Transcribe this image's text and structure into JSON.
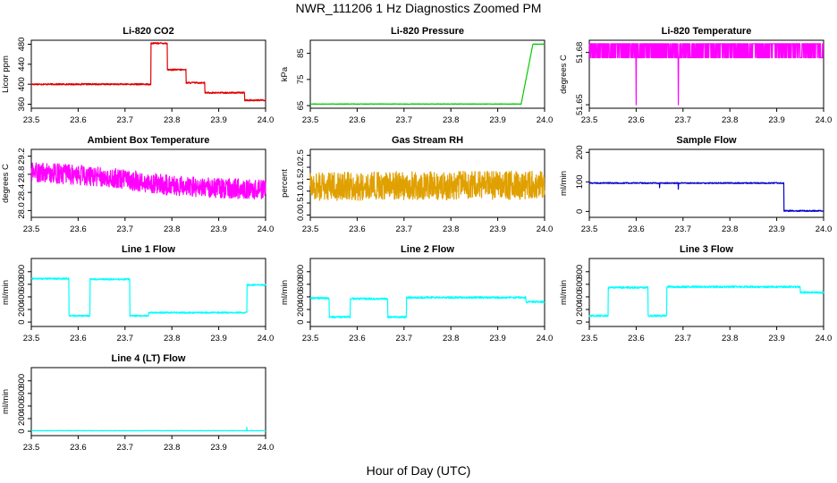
{
  "title": "NWR_111206  1 Hz Diagnostics Zoomed PM",
  "xlabel": "Hour of Day (UTC)",
  "x_ticks": [
    23.5,
    23.6,
    23.7,
    23.8,
    23.9,
    24.0
  ],
  "chart_data": [
    {
      "type": "line",
      "title": "Li-820 CO2",
      "ylabel": "Licor ppm",
      "color": "#e00000",
      "xlim": [
        23.5,
        24.0
      ],
      "ylim": [
        352,
        488
      ],
      "yticks": [
        360,
        400,
        440,
        480
      ],
      "segments": [
        [
          23.5,
          23.755,
          400
        ],
        [
          23.755,
          23.79,
          482
        ],
        [
          23.79,
          23.83,
          429
        ],
        [
          23.83,
          23.87,
          403
        ],
        [
          23.87,
          23.955,
          383
        ],
        [
          23.955,
          24.0,
          368
        ]
      ],
      "noise": 1.5
    },
    {
      "type": "line",
      "title": "Li-820 Pressure",
      "ylabel": "kPa",
      "color": "#00cc00",
      "xlim": [
        23.5,
        24.0
      ],
      "ylim": [
        64,
        90
      ],
      "yticks": [
        65,
        75,
        85
      ],
      "segments": [
        [
          23.5,
          23.95,
          65.6
        ],
        [
          23.95,
          23.975,
          65.6,
          88.5
        ],
        [
          23.975,
          24.0,
          88.5
        ]
      ],
      "noise": 0.1
    },
    {
      "type": "line",
      "title": "Li-820 Temperature",
      "ylabel": "degrees C",
      "color": "#ff00ff",
      "xlim": [
        23.5,
        24.0
      ],
      "ylim": [
        51.648,
        51.687
      ],
      "yticks": [
        51.65,
        51.68
      ],
      "levels": [
        51.685,
        51.677
      ],
      "dips": [
        [
          23.6,
          51.65
        ],
        [
          23.69,
          51.65
        ]
      ]
    },
    {
      "type": "line",
      "title": "Ambient Box Temperature",
      "ylabel": "degrees C",
      "color": "#ff00ff",
      "xlim": [
        23.5,
        24.0
      ],
      "ylim": [
        27.85,
        29.35
      ],
      "yticks": [
        28.0,
        28.4,
        28.8,
        29.2
      ],
      "trend": [
        [
          23.5,
          28.85
        ],
        [
          23.65,
          28.75
        ],
        [
          23.8,
          28.55
        ],
        [
          24.0,
          28.45
        ]
      ],
      "noise": 0.22
    },
    {
      "type": "line",
      "title": "Gas Stream RH",
      "ylabel": "percent",
      "color": "#e0a000",
      "xlim": [
        23.5,
        24.0
      ],
      "ylim": [
        -0.1,
        2.75
      ],
      "yticks": [
        0.0,
        0.5,
        1.0,
        1.5,
        2.0,
        2.5
      ],
      "trend": [
        [
          23.5,
          1.2
        ],
        [
          24.0,
          1.25
        ]
      ],
      "noise": 0.6
    },
    {
      "type": "line",
      "title": "Sample Flow",
      "ylabel": "ml/min",
      "color": "#0000cc",
      "xlim": [
        23.5,
        24.0
      ],
      "ylim": [
        -20,
        210
      ],
      "yticks": [
        0,
        100,
        200
      ],
      "segments": [
        [
          23.5,
          23.915,
          96
        ],
        [
          23.915,
          24.0,
          2
        ]
      ],
      "noise": 2,
      "dips": [
        [
          23.65,
          80
        ],
        [
          23.69,
          75
        ]
      ]
    },
    {
      "type": "line",
      "title": "Line 1 Flow",
      "ylabel": "ml/min",
      "color": "#00ffff",
      "xlim": [
        23.5,
        24.0
      ],
      "ylim": [
        -70,
        1010
      ],
      "yticks": [
        0,
        200,
        400,
        600,
        800
      ],
      "segments": [
        [
          23.5,
          23.58,
          690
        ],
        [
          23.58,
          23.625,
          100
        ],
        [
          23.625,
          23.71,
          680
        ],
        [
          23.71,
          23.75,
          100
        ],
        [
          23.75,
          23.96,
          150
        ],
        [
          23.96,
          24.0,
          590
        ]
      ],
      "noise": 12
    },
    {
      "type": "line",
      "title": "Line 2 Flow",
      "ylabel": "ml/min",
      "color": "#00ffff",
      "xlim": [
        23.5,
        24.0
      ],
      "ylim": [
        -70,
        1010
      ],
      "yticks": [
        0,
        200,
        400,
        600,
        800
      ],
      "segments": [
        [
          23.5,
          23.54,
          380
        ],
        [
          23.54,
          23.585,
          80
        ],
        [
          23.585,
          23.665,
          370
        ],
        [
          23.665,
          23.705,
          80
        ],
        [
          23.705,
          23.96,
          390
        ],
        [
          23.96,
          24.0,
          320
        ]
      ],
      "noise": 15
    },
    {
      "type": "line",
      "title": "Line 3 Flow",
      "ylabel": "ml/min",
      "color": "#00ffff",
      "xlim": [
        23.5,
        24.0
      ],
      "ylim": [
        -70,
        1010
      ],
      "yticks": [
        0,
        200,
        400,
        600,
        800
      ],
      "segments": [
        [
          23.5,
          23.54,
          100
        ],
        [
          23.54,
          23.625,
          550
        ],
        [
          23.625,
          23.665,
          100
        ],
        [
          23.665,
          23.95,
          560
        ],
        [
          23.95,
          24.0,
          470
        ]
      ],
      "noise": 15
    },
    {
      "type": "line",
      "title": "Line 4 (LT) Flow",
      "ylabel": "ml/min",
      "color": "#00ffff",
      "xlim": [
        23.5,
        24.0
      ],
      "ylim": [
        -70,
        1010
      ],
      "yticks": [
        0,
        200,
        400,
        600,
        800
      ],
      "segments": [
        [
          23.5,
          24.0,
          8
        ]
      ],
      "noise": 3,
      "dips": [
        [
          23.96,
          60
        ]
      ]
    }
  ]
}
